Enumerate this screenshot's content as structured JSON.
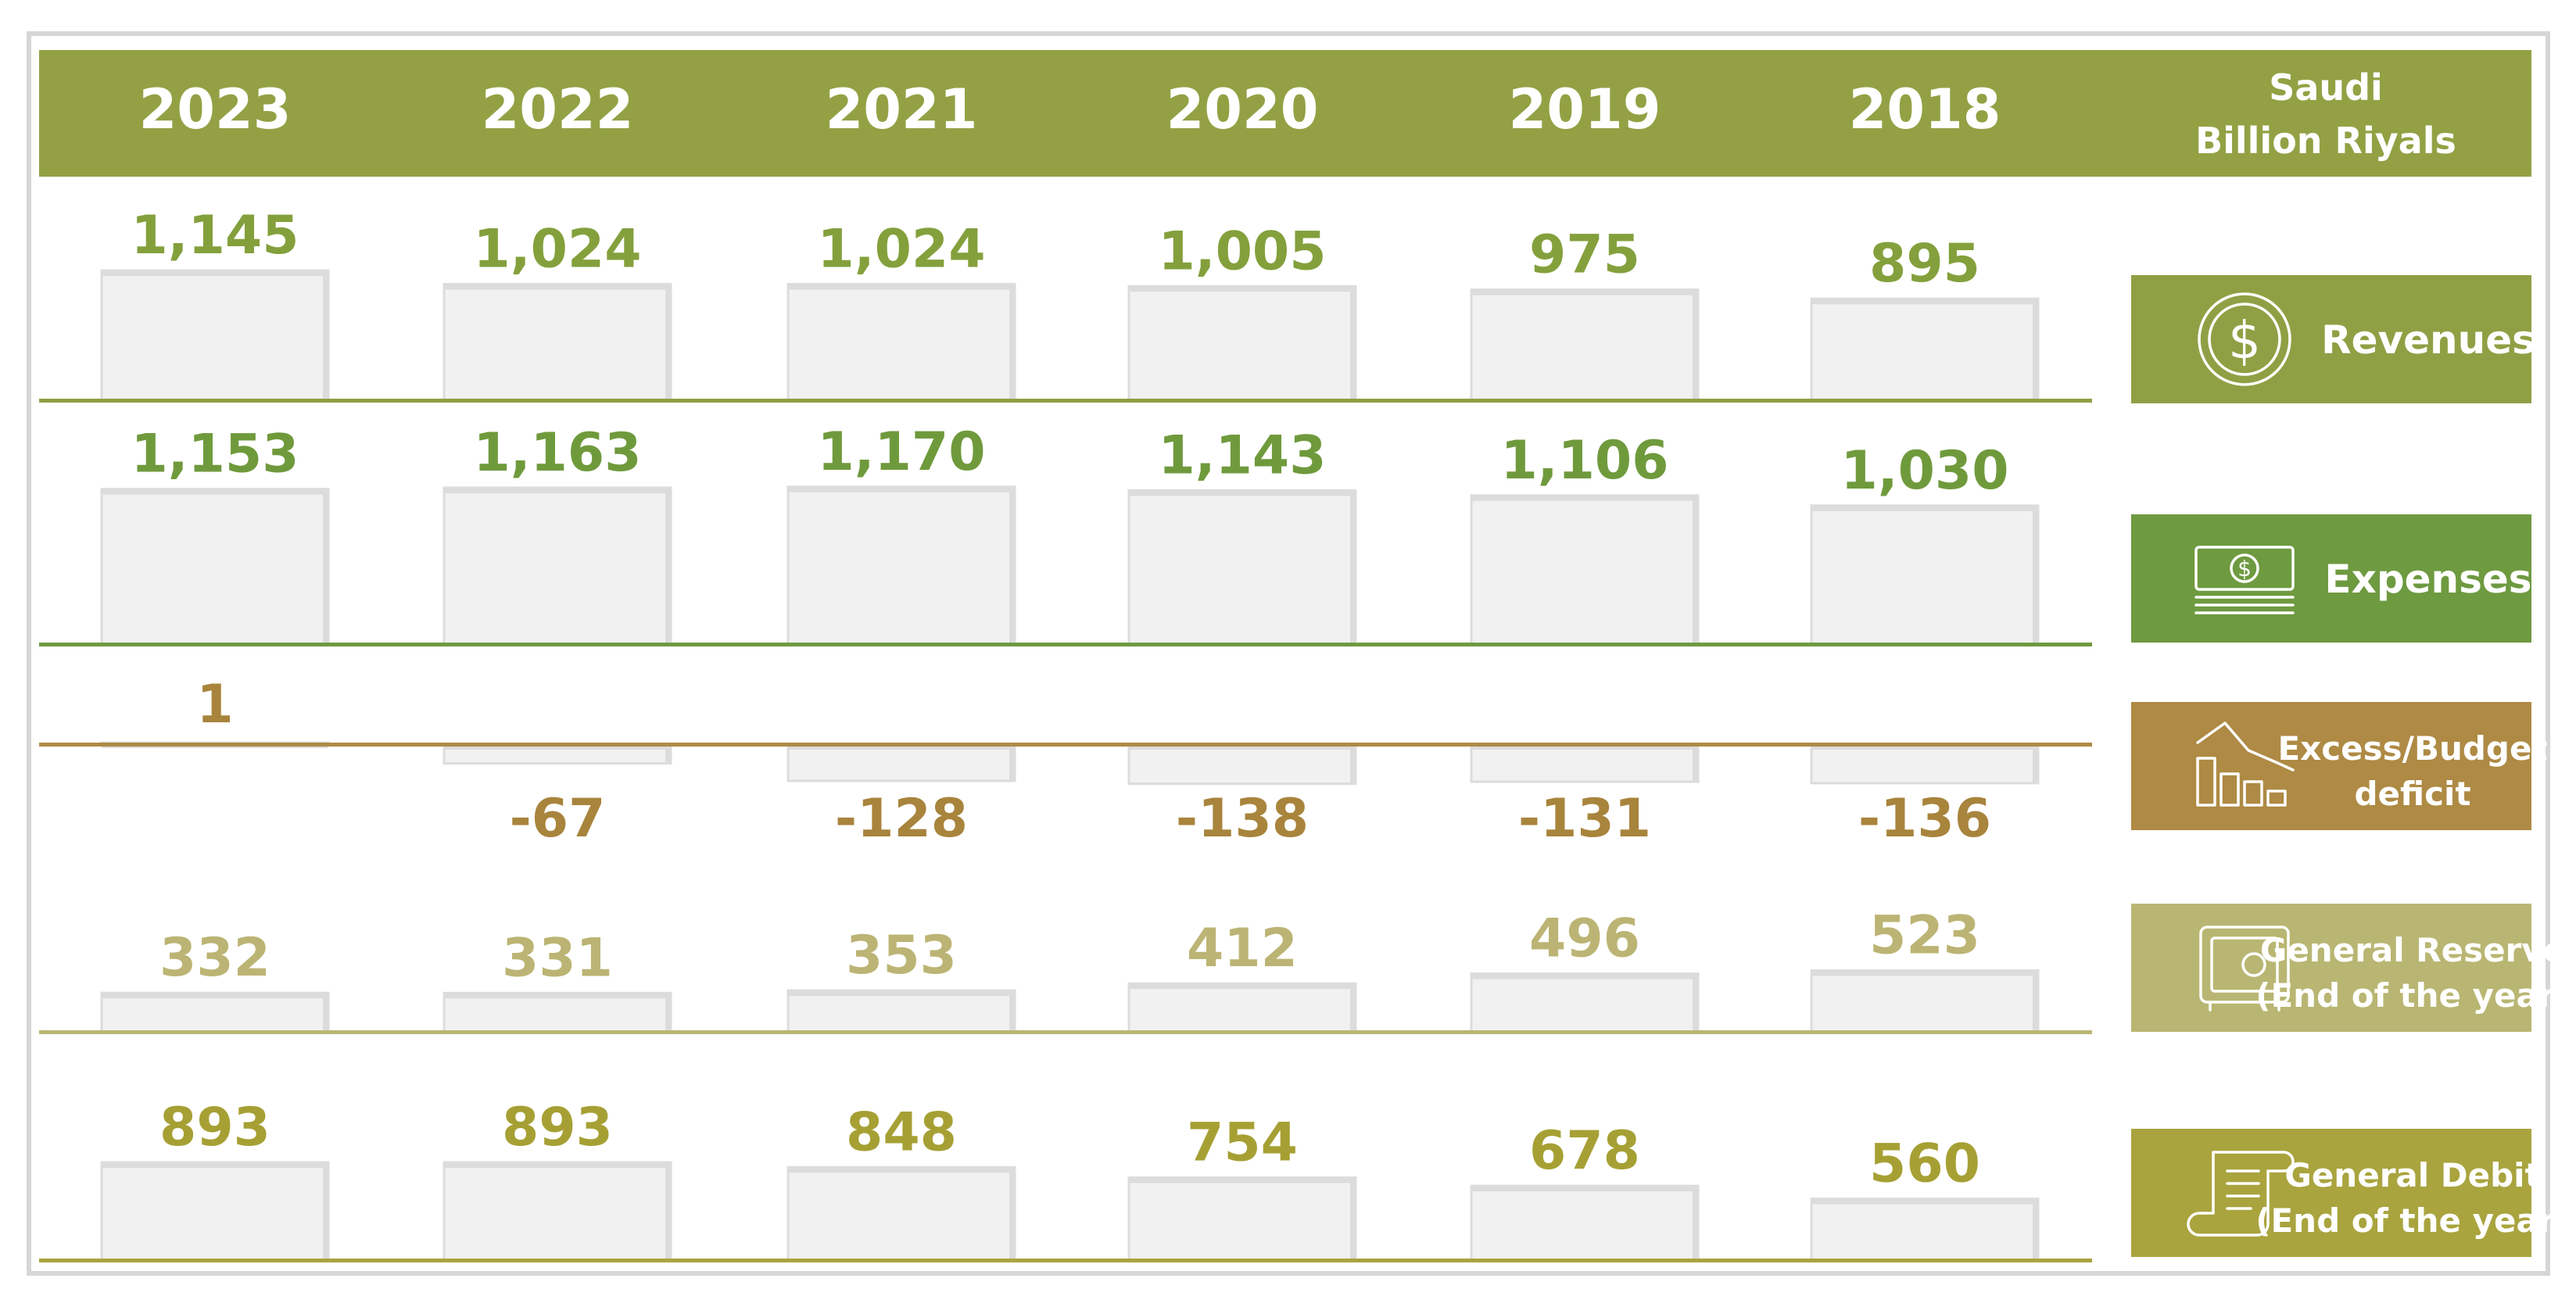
{
  "header": {
    "years": [
      "2023",
      "2022",
      "2021",
      "2020",
      "2019",
      "2018"
    ],
    "unit_line1": "Saudi",
    "unit_line2": "Billion Riyals"
  },
  "chart_data": {
    "type": "bar",
    "title": "",
    "unit": "Saudi Billion Riyals",
    "categories": [
      "2023",
      "2022",
      "2021",
      "2020",
      "2019",
      "2018"
    ],
    "series": [
      {
        "name": "Revenues",
        "values": [
          1145,
          1024,
          1024,
          1005,
          975,
          895
        ],
        "labels": [
          "1,145",
          "1,024",
          "1,024",
          "1,005",
          "975",
          "895"
        ]
      },
      {
        "name": "Expenses",
        "values": [
          1153,
          1163,
          1170,
          1143,
          1106,
          1030
        ],
        "labels": [
          "1,153",
          "1,163",
          "1,170",
          "1,143",
          "1,106",
          "1,030"
        ]
      },
      {
        "name": "Excess/Budget deficit",
        "values": [
          1,
          -67,
          -128,
          -138,
          -131,
          -136
        ],
        "labels": [
          "1",
          "-67",
          "-128",
          "-138",
          "-131",
          "-136"
        ]
      },
      {
        "name": "General Reserve (End of the year)",
        "values": [
          332,
          331,
          353,
          412,
          496,
          523
        ],
        "labels": [
          "332",
          "331",
          "353",
          "412",
          "496",
          "523"
        ]
      },
      {
        "name": "General Debit (End of the year)",
        "values": [
          893,
          893,
          848,
          754,
          678,
          560
        ],
        "labels": [
          "893",
          "893",
          "848",
          "754",
          "678",
          "560"
        ]
      }
    ]
  },
  "rows": [
    {
      "label_lines": [
        "Revenues"
      ],
      "icon": "dollar-coin-icon",
      "color": "#8fa044",
      "text_color": "#84a03c"
    },
    {
      "label_lines": [
        "Expenses"
      ],
      "icon": "banknote-stack-icon",
      "color": "#6e9a40",
      "text_color": "#6f9a3c"
    },
    {
      "label_lines": [
        "Excess/Budget",
        "deficit"
      ],
      "icon": "declining-chart-icon",
      "color": "#ae8a44",
      "text_color": "#a8843c"
    },
    {
      "label_lines": [
        "General Reserve",
        "(End of the year)"
      ],
      "icon": "safe-icon",
      "color": "#b9b673",
      "text_color": "#bcb474"
    },
    {
      "label_lines": [
        "General Debit",
        "(End of the year)"
      ],
      "icon": "scroll-icon",
      "color": "#a9a43e",
      "text_color": "#a6a034"
    }
  ],
  "colors": {
    "header_bg": "#93a144",
    "bar_fill": "#f1f1f1",
    "bar_edge": "#dcdcdc",
    "frame": "#d6d6d6"
  }
}
